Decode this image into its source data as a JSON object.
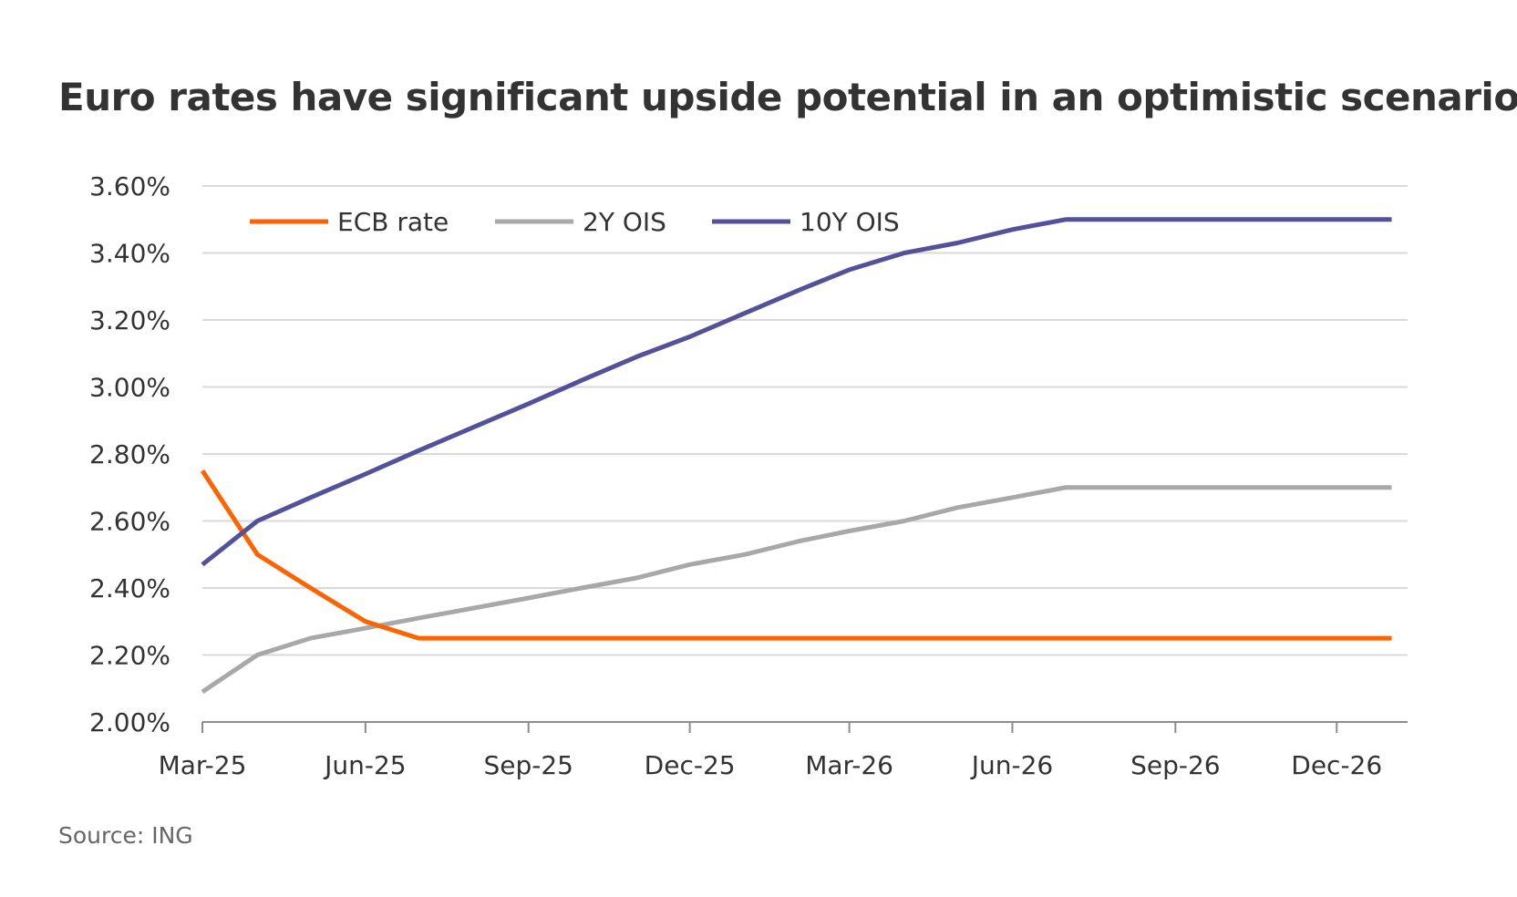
{
  "title": "Euro rates have significant upside potential in an optimistic scenario",
  "source": "Source: ING",
  "chart_data": {
    "type": "line",
    "x": [
      "2025-03-01",
      "2025-04-01",
      "2025-05-01",
      "2025-06-01",
      "2025-07-01",
      "2025-08-01",
      "2025-09-01",
      "2025-10-01",
      "2025-11-01",
      "2025-12-01",
      "2026-01-01",
      "2026-02-01",
      "2026-03-01",
      "2026-04-01",
      "2026-05-01",
      "2026-06-01",
      "2026-07-01",
      "2026-08-01",
      "2026-09-01",
      "2026-10-01",
      "2026-11-01",
      "2026-12-01",
      "2027-01-01"
    ],
    "series": [
      {
        "name": "ECB rate",
        "color": "#ff6200",
        "values": [
          2.75,
          2.5,
          2.4,
          2.3,
          2.25,
          2.25,
          2.25,
          2.25,
          2.25,
          2.25,
          2.25,
          2.25,
          2.25,
          2.25,
          2.25,
          2.25,
          2.25,
          2.25,
          2.25,
          2.25,
          2.25,
          2.25,
          2.25
        ]
      },
      {
        "name": "2Y OIS",
        "color": "#a8a8a8",
        "values": [
          2.09,
          2.2,
          2.25,
          2.28,
          2.31,
          2.34,
          2.37,
          2.4,
          2.43,
          2.47,
          2.5,
          2.54,
          2.57,
          2.6,
          2.64,
          2.67,
          2.7,
          2.7,
          2.7,
          2.7,
          2.7,
          2.7,
          2.7
        ]
      },
      {
        "name": "10Y OIS",
        "color": "#525199",
        "values": [
          2.47,
          2.6,
          2.67,
          2.74,
          2.81,
          2.88,
          2.95,
          3.02,
          3.09,
          3.15,
          3.22,
          3.29,
          3.35,
          3.4,
          3.43,
          3.47,
          3.5,
          3.5,
          3.5,
          3.5,
          3.5,
          3.5,
          3.5
        ]
      }
    ],
    "y_ticks": [
      "3.60%",
      "3.40%",
      "3.20%",
      "3.00%",
      "2.80%",
      "2.60%",
      "2.40%",
      "2.20%",
      "2.00%"
    ],
    "x_ticks": [
      "Mar-25",
      "Jun-25",
      "Sep-25",
      "Dec-25",
      "Mar-26",
      "Jun-26",
      "Sep-26",
      "Dec-26"
    ],
    "ylim": [
      2.0,
      3.6
    ],
    "grid": true,
    "legend": "top-left"
  }
}
